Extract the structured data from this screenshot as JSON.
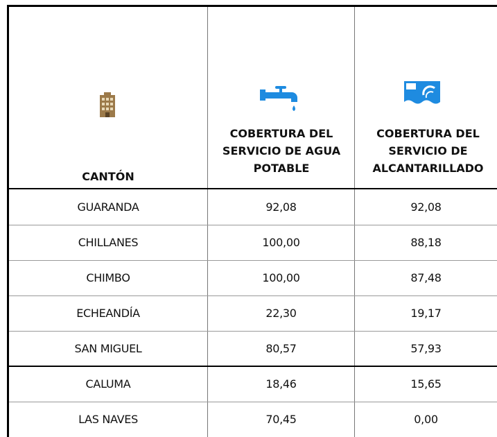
{
  "table": {
    "header": [
      "CANTÓN",
      "COBERTURA DEL SERVICIO DE AGUA POTABLE",
      "COBERTURA DEL SERVICIO DE ALCANTARILLADO"
    ],
    "rows": [
      [
        "GUARANDA",
        "92,08",
        "92,08"
      ],
      [
        "CHILLANES",
        "100,00",
        "88,18"
      ],
      [
        "CHIMBO",
        "100,00",
        "87,48"
      ],
      [
        "ECHEANDÍA",
        "22,30",
        "19,17"
      ],
      [
        "SAN MIGUEL",
        "80,57",
        "57,93"
      ],
      [
        "CALUMA",
        "18,46",
        "15,65"
      ],
      [
        "LAS NAVES",
        "70,45",
        "0,00"
      ]
    ]
  }
}
